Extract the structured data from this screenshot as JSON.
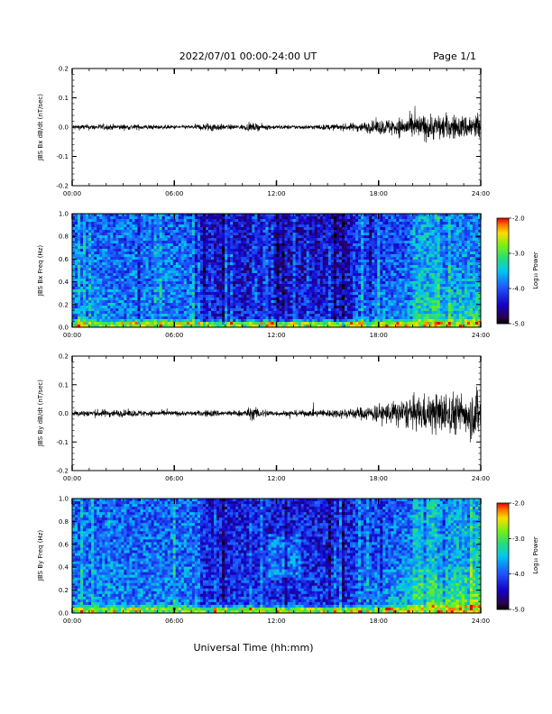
{
  "header": {
    "title": "2022/07/01  00:00-24:00 UT",
    "page": "Page 1/1"
  },
  "footer": {
    "xlabel": "Universal Time (hh:mm)"
  },
  "chart_data": [
    {
      "type": "line",
      "ylabel": "JBS Bx dB/dt (nT/sec)",
      "xlim": [
        "00:00",
        "24:00"
      ],
      "ylim": [
        -0.2,
        0.2
      ],
      "x_ticks": [
        "00:00",
        "06:00",
        "12:00",
        "18:00",
        "24:00"
      ],
      "y_ticks": [
        "0.2",
        "0.1",
        "0.0",
        "-0.1",
        "-0.2"
      ],
      "y_tick_values": [
        0.2,
        0.1,
        0.0,
        -0.1,
        -0.2
      ],
      "envelope": {
        "hours": [
          0,
          2,
          4,
          6,
          7,
          8.2,
          9,
          10,
          10.5,
          12,
          14,
          16,
          17,
          18,
          19,
          20,
          21,
          22,
          23,
          23.8,
          24
        ],
        "amplitude": [
          0.008,
          0.009,
          0.008,
          0.006,
          0.006,
          0.015,
          0.007,
          0.008,
          0.012,
          0.006,
          0.007,
          0.01,
          0.015,
          0.022,
          0.028,
          0.035,
          0.04,
          0.04,
          0.035,
          0.05,
          0.04
        ]
      }
    },
    {
      "type": "heatmap",
      "ylabel": "JBS Bx Freq (Hz)",
      "xlim": [
        "00:00",
        "24:00"
      ],
      "ylim": [
        0.0,
        1.0
      ],
      "x_ticks": [
        "00:00",
        "06:00",
        "12:00",
        "18:00",
        "24:00"
      ],
      "y_ticks": [
        "1.0",
        "0.8",
        "0.6",
        "0.4",
        "0.2",
        "0.0"
      ],
      "y_tick_values": [
        1.0,
        0.8,
        0.6,
        0.4,
        0.2,
        0.0
      ],
      "colorbar": {
        "label": "Log₁₀ Power",
        "range": [
          -5.0,
          -2.0
        ],
        "ticks": [
          "-2.0",
          "-3.0",
          "-4.0",
          "-5.0"
        ]
      }
    },
    {
      "type": "line",
      "ylabel": "JBS By dB/dt (nT/sec)",
      "xlim": [
        "00:00",
        "24:00"
      ],
      "ylim": [
        -0.2,
        0.2
      ],
      "x_ticks": [
        "00:00",
        "06:00",
        "12:00",
        "18:00",
        "24:00"
      ],
      "y_ticks": [
        "0.2",
        "0.1",
        "0.0",
        "-0.1",
        "-0.2"
      ],
      "y_tick_values": [
        0.2,
        0.1,
        0.0,
        -0.1,
        -0.2
      ],
      "envelope": {
        "hours": [
          0,
          2,
          4,
          6,
          7,
          8.2,
          9,
          10,
          10.5,
          12,
          14,
          16,
          17,
          18,
          19,
          20,
          21,
          22,
          23,
          23.8,
          24
        ],
        "amplitude": [
          0.01,
          0.012,
          0.01,
          0.008,
          0.007,
          0.012,
          0.008,
          0.01,
          0.02,
          0.008,
          0.01,
          0.015,
          0.02,
          0.03,
          0.04,
          0.05,
          0.06,
          0.07,
          0.06,
          0.09,
          0.06
        ]
      }
    },
    {
      "type": "heatmap",
      "ylabel": "JBS By Freq (Hz)",
      "xlim": [
        "00:00",
        "24:00"
      ],
      "ylim": [
        0.0,
        1.0
      ],
      "x_ticks": [
        "00:00",
        "06:00",
        "12:00",
        "18:00",
        "24:00"
      ],
      "y_ticks": [
        "1.0",
        "0.8",
        "0.6",
        "0.4",
        "0.2",
        "0.0"
      ],
      "y_tick_values": [
        1.0,
        0.8,
        0.6,
        0.4,
        0.2,
        0.0
      ],
      "colorbar": {
        "label": "Log₁₀ Power",
        "range": [
          -5.0,
          -2.0
        ],
        "ticks": [
          "-2.0",
          "-3.0",
          "-4.0",
          "-5.0"
        ]
      }
    }
  ]
}
